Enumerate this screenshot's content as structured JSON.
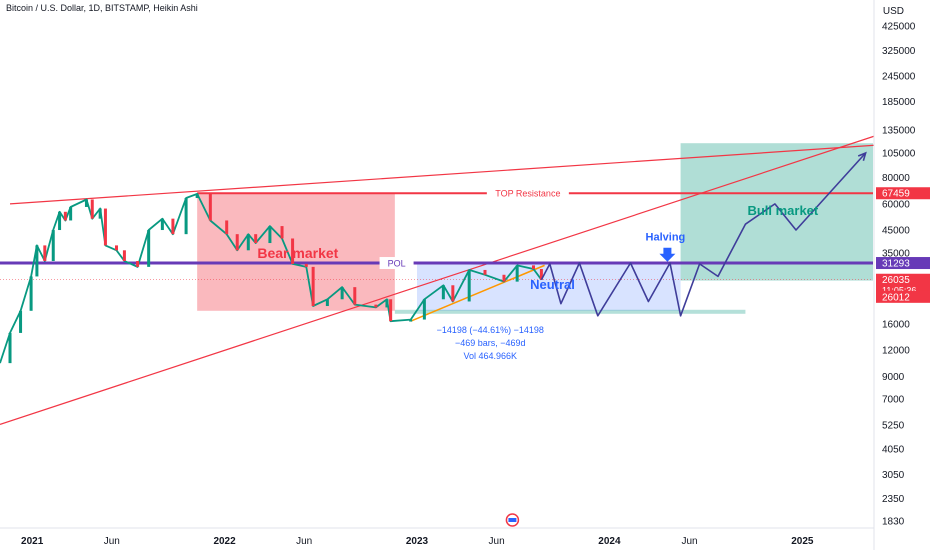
{
  "header": {
    "title": "Bitcoin / U.S. Dollar, 1D, BITSTAMP, Heikin Ashi"
  },
  "currency": "USD",
  "colors": {
    "bear": "#f23645",
    "bull": "#089981",
    "blue": "#2962ff",
    "purple": "#673ab7",
    "orange": "#ff9800",
    "red_line": "#f23645"
  },
  "chart_data": {
    "type": "line",
    "title": "Bitcoin / U.S. Dollar, 1D, BITSTAMP, Heikin Ashi",
    "ylabel": "USD",
    "yscale": "log",
    "ylim": [
      1830,
      425000
    ],
    "xlim": [
      "2020-11-01",
      "2025-05-15"
    ],
    "y_ticks": [
      425000,
      325000,
      245000,
      185000,
      135000,
      105000,
      80000,
      60000,
      45000,
      35000,
      16000,
      12000,
      9000,
      7000,
      5250,
      4050,
      3050,
      2350,
      1830
    ],
    "x_ticks": [
      {
        "label": "2021",
        "date": "2021-01-01",
        "bold": true
      },
      {
        "label": "Jun",
        "date": "2021-06-01",
        "bold": false
      },
      {
        "label": "2022",
        "date": "2022-01-01",
        "bold": true
      },
      {
        "label": "Jun",
        "date": "2022-06-01",
        "bold": false
      },
      {
        "label": "2023",
        "date": "2023-01-01",
        "bold": true
      },
      {
        "label": "Jun",
        "date": "2023-06-01",
        "bold": false
      },
      {
        "label": "2024",
        "date": "2024-01-01",
        "bold": true
      },
      {
        "label": "Jun",
        "date": "2024-06-01",
        "bold": false
      },
      {
        "label": "2025",
        "date": "2025-01-01",
        "bold": true
      }
    ],
    "series": [
      {
        "name": "BTCUSD",
        "points": [
          [
            "2020-11-01",
            10400
          ],
          [
            "2020-11-20",
            14500
          ],
          [
            "2020-12-10",
            18500
          ],
          [
            "2020-12-30",
            27000
          ],
          [
            "2021-01-10",
            38000
          ],
          [
            "2021-01-25",
            32000
          ],
          [
            "2021-02-10",
            45000
          ],
          [
            "2021-02-22",
            55000
          ],
          [
            "2021-03-05",
            50000
          ],
          [
            "2021-03-15",
            58000
          ],
          [
            "2021-04-14",
            63000
          ],
          [
            "2021-04-25",
            51000
          ],
          [
            "2021-05-10",
            57000
          ],
          [
            "2021-05-20",
            38000
          ],
          [
            "2021-06-10",
            36000
          ],
          [
            "2021-06-25",
            32000
          ],
          [
            "2021-07-20",
            30000
          ],
          [
            "2021-08-10",
            45000
          ],
          [
            "2021-09-05",
            51000
          ],
          [
            "2021-09-25",
            43000
          ],
          [
            "2021-10-20",
            64000
          ],
          [
            "2021-11-10",
            67000
          ],
          [
            "2021-12-05",
            50000
          ],
          [
            "2022-01-05",
            43000
          ],
          [
            "2022-01-25",
            36000
          ],
          [
            "2022-02-15",
            43000
          ],
          [
            "2022-03-01",
            39000
          ],
          [
            "2022-03-28",
            47000
          ],
          [
            "2022-04-20",
            41000
          ],
          [
            "2022-05-10",
            31000
          ],
          [
            "2022-06-05",
            30000
          ],
          [
            "2022-06-18",
            19500
          ],
          [
            "2022-07-15",
            21000
          ],
          [
            "2022-08-12",
            24000
          ],
          [
            "2022-09-05",
            19800
          ],
          [
            "2022-10-15",
            19200
          ],
          [
            "2022-11-05",
            21000
          ],
          [
            "2022-11-12",
            16500
          ],
          [
            "2022-12-20",
            16800
          ],
          [
            "2023-01-15",
            21000
          ],
          [
            "2023-02-20",
            24500
          ],
          [
            "2023-03-10",
            20500
          ],
          [
            "2023-04-10",
            29000
          ],
          [
            "2023-05-10",
            27500
          ],
          [
            "2023-06-15",
            25500
          ],
          [
            "2023-07-10",
            30500
          ],
          [
            "2023-08-10",
            29300
          ],
          [
            "2023-08-25",
            26035
          ]
        ]
      },
      {
        "name": "Projection",
        "points": [
          [
            "2023-08-25",
            26035
          ],
          [
            "2023-09-10",
            31000
          ],
          [
            "2023-10-01",
            20000
          ],
          [
            "2023-11-05",
            31293
          ],
          [
            "2023-12-10",
            17500
          ],
          [
            "2024-02-10",
            31293
          ],
          [
            "2024-03-15",
            20500
          ],
          [
            "2024-04-25",
            31293
          ],
          [
            "2024-05-15",
            17500
          ],
          [
            "2024-06-20",
            31000
          ],
          [
            "2024-07-25",
            27000
          ],
          [
            "2024-09-15",
            48000
          ],
          [
            "2024-11-10",
            60000
          ],
          [
            "2024-12-20",
            45000
          ],
          [
            "2025-05-01",
            105000
          ]
        ]
      }
    ],
    "levels": [
      {
        "name": "TOP Resistance",
        "value": 67459,
        "label": "67459"
      },
      {
        "name": "POL",
        "value": 31293,
        "label": "31293"
      }
    ],
    "price_labels": [
      {
        "value": 26035,
        "label": "26035",
        "sub": "11:05:36"
      },
      {
        "value": 26012,
        "label": "26012"
      }
    ],
    "zones": [
      {
        "name": "Bear market",
        "x": [
          "2021-11-10",
          "2022-11-20"
        ],
        "y": [
          18500,
          67459
        ]
      },
      {
        "name": "Neutral",
        "x": [
          "2023-01-01",
          "2024-05-15"
        ],
        "y": [
          18500,
          31293
        ]
      },
      {
        "name": "Bull market",
        "x": [
          "2024-05-15",
          "2025-05-15"
        ],
        "y": [
          25800,
          117000
        ]
      }
    ],
    "measurement": {
      "line1": "−14198 (−44.61%) −14198",
      "line2": "−469 bars, −469d",
      "line3": "Vol 464.966K"
    },
    "annotations": [
      "Halving"
    ],
    "trendlines": [
      {
        "name": "upper-trendline",
        "from": [
          "2020-11-20",
          60000
        ],
        "to": [
          "2025-06-01",
          115000
        ]
      },
      {
        "name": "lower-trendline",
        "from": [
          "2020-11-01",
          5300
        ],
        "to": [
          "2025-06-01",
          130000
        ]
      },
      {
        "name": "orange-support",
        "from": [
          "2022-12-20",
          16500
        ],
        "to": [
          "2023-08-31",
          30500
        ]
      }
    ]
  }
}
